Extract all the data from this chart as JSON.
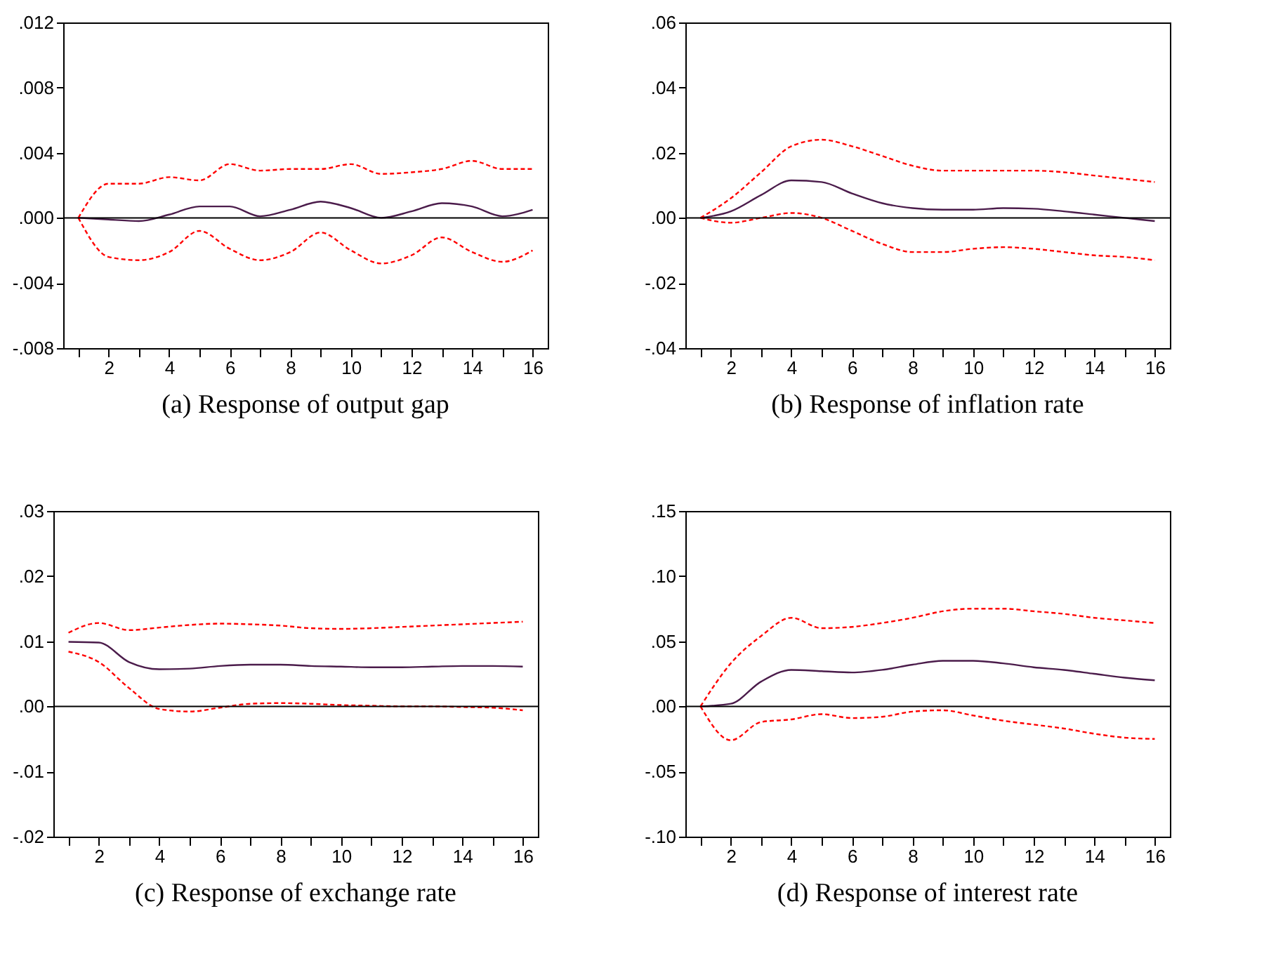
{
  "chart_data": [
    {
      "type": "line",
      "title": "(a) Response of output gap",
      "x": [
        1,
        2,
        3,
        4,
        5,
        6,
        7,
        8,
        9,
        10,
        11,
        12,
        13,
        14,
        15,
        16
      ],
      "xlim": [
        0.5,
        16.5
      ],
      "xticks": [
        {
          "value": 1,
          "label": null
        },
        2,
        {
          "value": 3,
          "label": null
        },
        4,
        {
          "value": 5,
          "label": null
        },
        6,
        {
          "value": 7,
          "label": null
        },
        8,
        {
          "value": 9,
          "label": null
        },
        10,
        {
          "value": 11,
          "label": null
        },
        12,
        {
          "value": 13,
          "label": null
        },
        14,
        {
          "value": 15,
          "label": null
        },
        16
      ],
      "ylim": [
        -0.008,
        0.012
      ],
      "yticks": [
        {
          "value": -0.008,
          "label": "-.008"
        },
        {
          "value": -0.004,
          "label": "-.004"
        },
        {
          "value": 0,
          "label": ".000"
        },
        {
          "value": 0.004,
          "label": ".004"
        },
        {
          "value": 0.008,
          "label": ".008"
        },
        {
          "value": 0.012,
          "label": ".012"
        }
      ],
      "grid": false,
      "legend": false,
      "ref_lines": [
        {
          "axis": "y",
          "value": 0,
          "color": "#000000"
        }
      ],
      "series": [
        {
          "color": "#4b1c4b",
          "line_style": "solid",
          "values": [
            0,
            -0.0001,
            -0.0002,
            0.0002,
            0.0007,
            0.0007,
            0.0001,
            0.0005,
            0.001,
            0.0006,
            0,
            0.0004,
            0.0009,
            0.0007,
            0.0001,
            0.0005
          ]
        },
        {
          "color": "#ff0000",
          "line_style": "dashed",
          "values": [
            0,
            0.0021,
            0.0021,
            0.0025,
            0.0023,
            0.0033,
            0.0029,
            0.003,
            0.003,
            0.0033,
            0.0027,
            0.0028,
            0.003,
            0.0035,
            0.003,
            0.003
          ]
        },
        {
          "color": "#ff0000",
          "line_style": "dashed",
          "values": [
            0,
            -0.0024,
            -0.0026,
            -0.0021,
            -0.0008,
            -0.0019,
            -0.0026,
            -0.0021,
            -0.0009,
            -0.002,
            -0.0028,
            -0.0023,
            -0.0012,
            -0.0021,
            -0.0027,
            -0.002
          ]
        }
      ]
    },
    {
      "type": "line",
      "title": "(b) Response of inflation rate",
      "x": [
        1,
        2,
        3,
        4,
        5,
        6,
        7,
        8,
        9,
        10,
        11,
        12,
        13,
        14,
        15,
        16
      ],
      "xlim": [
        0.5,
        16.5
      ],
      "xticks": [
        {
          "value": 1,
          "label": null
        },
        2,
        {
          "value": 3,
          "label": null
        },
        4,
        {
          "value": 5,
          "label": null
        },
        6,
        {
          "value": 7,
          "label": null
        },
        8,
        {
          "value": 9,
          "label": null
        },
        10,
        {
          "value": 11,
          "label": null
        },
        12,
        {
          "value": 13,
          "label": null
        },
        14,
        {
          "value": 15,
          "label": null
        },
        16
      ],
      "ylim": [
        -0.04,
        0.06
      ],
      "yticks": [
        {
          "value": -0.04,
          "label": "-.04"
        },
        {
          "value": -0.02,
          "label": "-.02"
        },
        {
          "value": 0,
          "label": ".00"
        },
        {
          "value": 0.02,
          "label": ".02"
        },
        {
          "value": 0.04,
          "label": ".04"
        },
        {
          "value": 0.06,
          "label": ".06"
        }
      ],
      "grid": false,
      "legend": false,
      "ref_lines": [
        {
          "axis": "y",
          "value": 0,
          "color": "#000000"
        }
      ],
      "series": [
        {
          "color": "#4b1c4b",
          "line_style": "solid",
          "values": [
            0,
            0.002,
            0.007,
            0.0115,
            0.011,
            0.0075,
            0.0045,
            0.003,
            0.0025,
            0.0025,
            0.003,
            0.0028,
            0.002,
            0.001,
            0,
            -0.001
          ]
        },
        {
          "color": "#ff0000",
          "line_style": "dashed",
          "values": [
            0,
            0.006,
            0.014,
            0.022,
            0.024,
            0.022,
            0.019,
            0.016,
            0.0145,
            0.0145,
            0.0145,
            0.0145,
            0.014,
            0.013,
            0.012,
            0.011
          ]
        },
        {
          "color": "#ff0000",
          "line_style": "dashed",
          "values": [
            0,
            -0.0015,
            0,
            0.0015,
            0,
            -0.004,
            -0.008,
            -0.0105,
            -0.0105,
            -0.0095,
            -0.009,
            -0.0095,
            -0.0105,
            -0.0115,
            -0.012,
            -0.013
          ]
        }
      ]
    },
    {
      "type": "line",
      "title": "(c) Response of exchange rate",
      "x": [
        1,
        2,
        3,
        4,
        5,
        6,
        7,
        8,
        9,
        10,
        11,
        12,
        13,
        14,
        15,
        16
      ],
      "xlim": [
        0.5,
        16.5
      ],
      "xticks": [
        {
          "value": 1,
          "label": null
        },
        2,
        {
          "value": 3,
          "label": null
        },
        4,
        {
          "value": 5,
          "label": null
        },
        6,
        {
          "value": 7,
          "label": null
        },
        8,
        {
          "value": 9,
          "label": null
        },
        10,
        {
          "value": 11,
          "label": null
        },
        12,
        {
          "value": 13,
          "label": null
        },
        14,
        {
          "value": 15,
          "label": null
        },
        16
      ],
      "ylim": [
        -0.02,
        0.03
      ],
      "yticks": [
        {
          "value": -0.02,
          "label": "-.02"
        },
        {
          "value": -0.01,
          "label": "-.01"
        },
        {
          "value": 0,
          "label": ".00"
        },
        {
          "value": 0.01,
          "label": ".01"
        },
        {
          "value": 0.02,
          "label": ".02"
        },
        {
          "value": 0.03,
          "label": ".03"
        }
      ],
      "grid": false,
      "legend": false,
      "ref_lines": [
        {
          "axis": "y",
          "value": 0,
          "color": "#000000"
        }
      ],
      "series": [
        {
          "color": "#4b1c4b",
          "line_style": "solid",
          "values": [
            0.0099,
            0.0098,
            0.0068,
            0.0057,
            0.0058,
            0.0062,
            0.0064,
            0.0064,
            0.0062,
            0.0061,
            0.006,
            0.006,
            0.0061,
            0.0062,
            0.0062,
            0.0061
          ]
        },
        {
          "color": "#ff0000",
          "line_style": "dashed",
          "values": [
            0.0113,
            0.0128,
            0.0117,
            0.0121,
            0.0125,
            0.0127,
            0.0126,
            0.0124,
            0.012,
            0.0119,
            0.012,
            0.0122,
            0.0124,
            0.0126,
            0.0128,
            0.013
          ]
        },
        {
          "color": "#ff0000",
          "line_style": "dashed",
          "values": [
            0.0084,
            0.0068,
            0.0028,
            -0.0004,
            -0.0008,
            -0.0002,
            0.0004,
            0.0005,
            0.0004,
            0.0002,
            0.0001,
            0,
            0,
            -0.0001,
            -0.0002,
            -0.0006
          ]
        }
      ]
    },
    {
      "type": "line",
      "title": "(d) Response of interest rate",
      "x": [
        1,
        2,
        3,
        4,
        5,
        6,
        7,
        8,
        9,
        10,
        11,
        12,
        13,
        14,
        15,
        16
      ],
      "xlim": [
        0.5,
        16.5
      ],
      "xticks": [
        {
          "value": 1,
          "label": null
        },
        2,
        {
          "value": 3,
          "label": null
        },
        4,
        {
          "value": 5,
          "label": null
        },
        6,
        {
          "value": 7,
          "label": null
        },
        8,
        {
          "value": 9,
          "label": null
        },
        10,
        {
          "value": 11,
          "label": null
        },
        12,
        {
          "value": 13,
          "label": null
        },
        14,
        {
          "value": 15,
          "label": null
        },
        16
      ],
      "ylim": [
        -0.1,
        0.15
      ],
      "yticks": [
        {
          "value": -0.1,
          "label": "-.10"
        },
        {
          "value": -0.05,
          "label": "-.05"
        },
        {
          "value": 0,
          "label": ".00"
        },
        {
          "value": 0.05,
          "label": ".05"
        },
        {
          "value": 0.1,
          "label": ".10"
        },
        {
          "value": 0.15,
          "label": ".15"
        }
      ],
      "grid": false,
      "legend": false,
      "ref_lines": [
        {
          "axis": "y",
          "value": 0,
          "color": "#000000"
        }
      ],
      "series": [
        {
          "color": "#4b1c4b",
          "line_style": "solid",
          "values": [
            0,
            0.002,
            0.019,
            0.028,
            0.027,
            0.026,
            0.028,
            0.032,
            0.035,
            0.035,
            0.033,
            0.03,
            0.028,
            0.025,
            0.022,
            0.02
          ]
        },
        {
          "color": "#ff0000",
          "line_style": "dashed",
          "values": [
            0,
            0.033,
            0.054,
            0.068,
            0.06,
            0.061,
            0.064,
            0.068,
            0.073,
            0.075,
            0.075,
            0.073,
            0.071,
            0.068,
            0.066,
            0.064
          ]
        },
        {
          "color": "#ff0000",
          "line_style": "dashed",
          "values": [
            0,
            -0.026,
            -0.012,
            -0.01,
            -0.006,
            -0.009,
            -0.008,
            -0.004,
            -0.003,
            -0.007,
            -0.011,
            -0.014,
            -0.017,
            -0.021,
            -0.024,
            -0.025
          ]
        }
      ]
    }
  ]
}
